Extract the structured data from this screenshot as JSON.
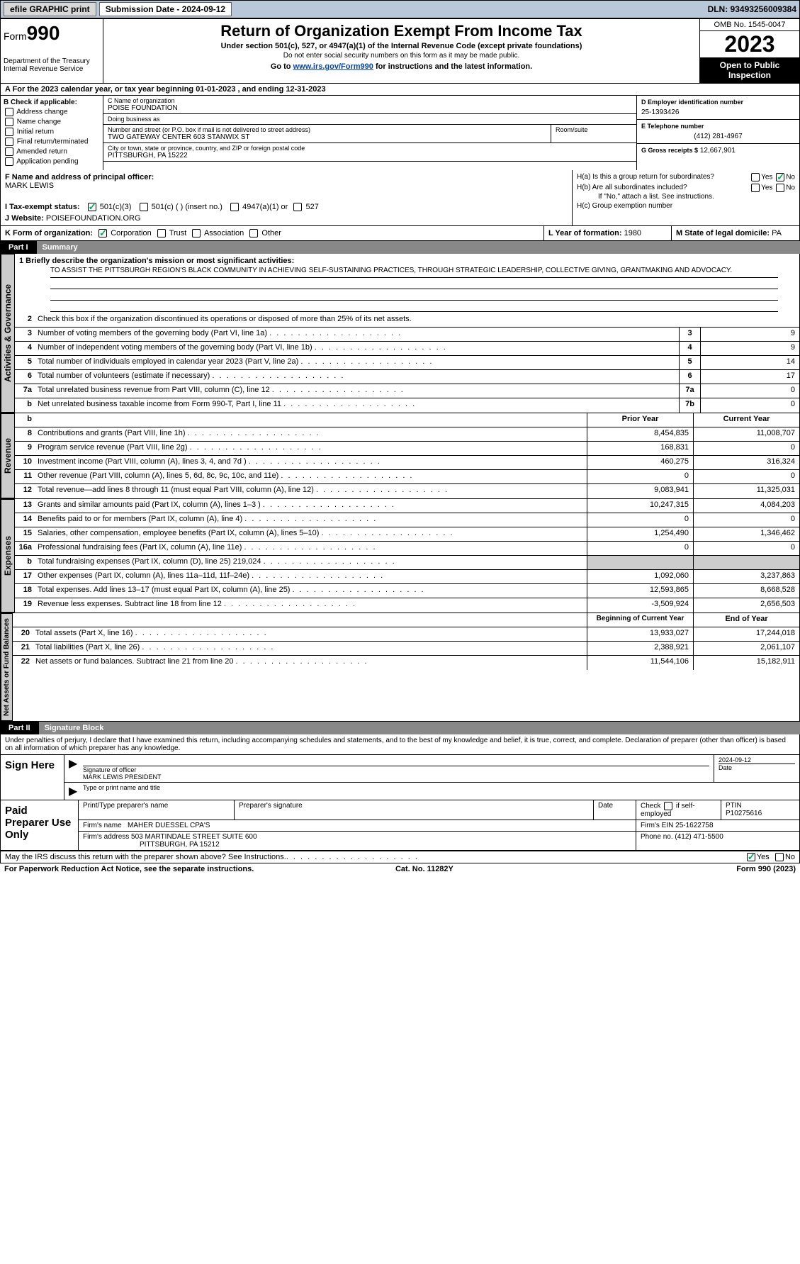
{
  "topbar": {
    "efile": "efile GRAPHIC print",
    "submission": "Submission Date - 2024-09-12",
    "dln": "DLN: 93493256009384"
  },
  "header": {
    "form_prefix": "Form",
    "form_number": "990",
    "title": "Return of Organization Exempt From Income Tax",
    "subtitle": "Under section 501(c), 527, or 4947(a)(1) of the Internal Revenue Code (except private foundations)",
    "ssn_note": "Do not enter social security numbers on this form as it may be made public.",
    "goto_prefix": "Go to ",
    "goto_link": "www.irs.gov/Form990",
    "goto_suffix": " for instructions and the latest information.",
    "dept": "Department of the Treasury\nInternal Revenue Service",
    "omb": "OMB No. 1545-0047",
    "year": "2023",
    "open": "Open to Public Inspection"
  },
  "row_a": "A For the 2023 calendar year, or tax year beginning 01-01-2023   , and ending 12-31-2023",
  "col_b": {
    "header": "B Check if applicable:",
    "items": [
      "Address change",
      "Name change",
      "Initial return",
      "Final return/terminated",
      "Amended return",
      "Application pending"
    ]
  },
  "col_c": {
    "name_label": "C Name of organization",
    "name": "POISE FOUNDATION",
    "dba_label": "Doing business as",
    "dba": "",
    "street_label": "Number and street (or P.O. box if mail is not delivered to street address)",
    "street": "TWO GATEWAY CENTER 603 STANWIX ST",
    "room_label": "Room/suite",
    "room": "",
    "city_label": "City or town, state or province, country, and ZIP or foreign postal code",
    "city": "PITTSBURGH, PA  15222"
  },
  "col_d": {
    "ein_label": "D Employer identification number",
    "ein": "25-1393426",
    "phone_label": "E Telephone number",
    "phone": "(412) 281-4967",
    "gross_label": "G Gross receipts $",
    "gross": "12,667,901"
  },
  "row_f": {
    "label": "F  Name and address of principal officer:",
    "name": "MARK LEWIS"
  },
  "row_h": {
    "a": "H(a)  Is this a group return for subordinates?",
    "b": "H(b)  Are all subordinates included?",
    "b_note": "If \"No,\" attach a list. See instructions.",
    "c": "H(c)  Group exemption number ",
    "yes": "Yes",
    "no": "No"
  },
  "row_i": {
    "label": "I   Tax-exempt status:",
    "opts": [
      "501(c)(3)",
      "501(c) (  ) (insert no.)",
      "4947(a)(1) or",
      "527"
    ]
  },
  "row_j": {
    "label": "J   Website: ",
    "value": "POISEFOUNDATION.ORG"
  },
  "row_k": {
    "label": "K Form of organization:",
    "opts": [
      "Corporation",
      "Trust",
      "Association",
      "Other"
    ],
    "l_label": "L Year of formation:",
    "l_val": "1980",
    "m_label": "M State of legal domicile:",
    "m_val": "PA"
  },
  "part1": {
    "num": "Part I",
    "title": "Summary"
  },
  "mission": {
    "q": "1   Briefly describe the organization's mission or most significant activities:",
    "text": "TO ASSIST THE PITTSBURGH REGION'S BLACK COMMUNITY IN ACHIEVING SELF-SUSTAINING PRACTICES, THROUGH STRATEGIC LEADERSHIP, COLLECTIVE GIVING, GRANTMAKING AND ADVOCACY."
  },
  "gov_lines": [
    {
      "n": "2",
      "d": "Check this box      if the organization discontinued its operations or disposed of more than 25% of its net assets."
    },
    {
      "n": "3",
      "d": "Number of voting members of the governing body (Part VI, line 1a)",
      "box": "3",
      "v": "9"
    },
    {
      "n": "4",
      "d": "Number of independent voting members of the governing body (Part VI, line 1b)",
      "box": "4",
      "v": "9"
    },
    {
      "n": "5",
      "d": "Total number of individuals employed in calendar year 2023 (Part V, line 2a)",
      "box": "5",
      "v": "14"
    },
    {
      "n": "6",
      "d": "Total number of volunteers (estimate if necessary)",
      "box": "6",
      "v": "17"
    },
    {
      "n": "7a",
      "d": "Total unrelated business revenue from Part VIII, column (C), line 12",
      "box": "7a",
      "v": "0"
    },
    {
      "n": "b",
      "d": "Net unrelated business taxable income from Form 990-T, Part I, line 11",
      "box": "7b",
      "v": "0"
    }
  ],
  "rev_header": {
    "prior": "Prior Year",
    "curr": "Current Year"
  },
  "rev_lines": [
    {
      "n": "8",
      "d": "Contributions and grants (Part VIII, line 1h)",
      "p": "8,454,835",
      "c": "11,008,707"
    },
    {
      "n": "9",
      "d": "Program service revenue (Part VIII, line 2g)",
      "p": "168,831",
      "c": "0"
    },
    {
      "n": "10",
      "d": "Investment income (Part VIII, column (A), lines 3, 4, and 7d )",
      "p": "460,275",
      "c": "316,324"
    },
    {
      "n": "11",
      "d": "Other revenue (Part VIII, column (A), lines 5, 6d, 8c, 9c, 10c, and 11e)",
      "p": "0",
      "c": "0"
    },
    {
      "n": "12",
      "d": "Total revenue—add lines 8 through 11 (must equal Part VIII, column (A), line 12)",
      "p": "9,083,941",
      "c": "11,325,031"
    }
  ],
  "exp_lines": [
    {
      "n": "13",
      "d": "Grants and similar amounts paid (Part IX, column (A), lines 1–3 )",
      "p": "10,247,315",
      "c": "4,084,203"
    },
    {
      "n": "14",
      "d": "Benefits paid to or for members (Part IX, column (A), line 4)",
      "p": "0",
      "c": "0"
    },
    {
      "n": "15",
      "d": "Salaries, other compensation, employee benefits (Part IX, column (A), lines 5–10)",
      "p": "1,254,490",
      "c": "1,346,462"
    },
    {
      "n": "16a",
      "d": "Professional fundraising fees (Part IX, column (A), line 11e)",
      "p": "0",
      "c": "0"
    },
    {
      "n": "b",
      "d": "Total fundraising expenses (Part IX, column (D), line 25) 219,024",
      "p": "",
      "c": "",
      "shaded": true
    },
    {
      "n": "17",
      "d": "Other expenses (Part IX, column (A), lines 11a–11d, 11f–24e)",
      "p": "1,092,060",
      "c": "3,237,863"
    },
    {
      "n": "18",
      "d": "Total expenses. Add lines 13–17 (must equal Part IX, column (A), line 25)",
      "p": "12,593,865",
      "c": "8,668,528"
    },
    {
      "n": "19",
      "d": "Revenue less expenses. Subtract line 18 from line 12",
      "p": "-3,509,924",
      "c": "2,656,503"
    }
  ],
  "na_header": {
    "prior": "Beginning of Current Year",
    "curr": "End of Year"
  },
  "na_lines": [
    {
      "n": "20",
      "d": "Total assets (Part X, line 16)",
      "p": "13,933,027",
      "c": "17,244,018"
    },
    {
      "n": "21",
      "d": "Total liabilities (Part X, line 26)",
      "p": "2,388,921",
      "c": "2,061,107"
    },
    {
      "n": "22",
      "d": "Net assets or fund balances. Subtract line 21 from line 20",
      "p": "11,544,106",
      "c": "15,182,911"
    }
  ],
  "part2": {
    "num": "Part II",
    "title": "Signature Block"
  },
  "sig_intro": "Under penalties of perjury, I declare that I have examined this return, including accompanying schedules and statements, and to the best of my knowledge and belief, it is true, correct, and complete. Declaration of preparer (other than officer) is based on all information of which preparer has any knowledge.",
  "sign": {
    "left": "Sign Here",
    "sig_label": "Signature of officer",
    "name": "MARK LEWIS PRESIDENT",
    "name_label": "Type or print name and title",
    "date": "2024-09-12",
    "date_label": "Date"
  },
  "prep": {
    "left": "Paid Preparer Use Only",
    "h1": "Print/Type preparer's name",
    "h2": "Preparer's signature",
    "h3": "Date",
    "h4": "Check      if self-employed",
    "h5": "PTIN",
    "ptin": "P10275616",
    "firm_label": "Firm's name   ",
    "firm": "MAHER DUESSEL CPA'S",
    "ein_label": "Firm's EIN  ",
    "ein": "25-1622758",
    "addr_label": "Firm's address ",
    "addr1": "503 MARTINDALE STREET SUITE 600",
    "addr2": "PITTSBURGH, PA  15212",
    "phone_label": "Phone no. ",
    "phone": "(412) 471-5500"
  },
  "footer": {
    "discuss": "May the IRS discuss this return with the preparer shown above? See Instructions.",
    "yes": "Yes",
    "no": "No",
    "pra": "For Paperwork Reduction Act Notice, see the separate instructions.",
    "cat": "Cat. No. 11282Y",
    "form": "Form 990 (2023)"
  },
  "vtabs": {
    "gov": "Activities & Governance",
    "rev": "Revenue",
    "exp": "Expenses",
    "na": "Net Assets or Fund Balances"
  },
  "colors": {
    "topbar_bg": "#b8c8d8",
    "part_tab_bg": "#888888",
    "shaded_bg": "#cccccc",
    "link": "#0645ad",
    "check": "#00aa55"
  }
}
